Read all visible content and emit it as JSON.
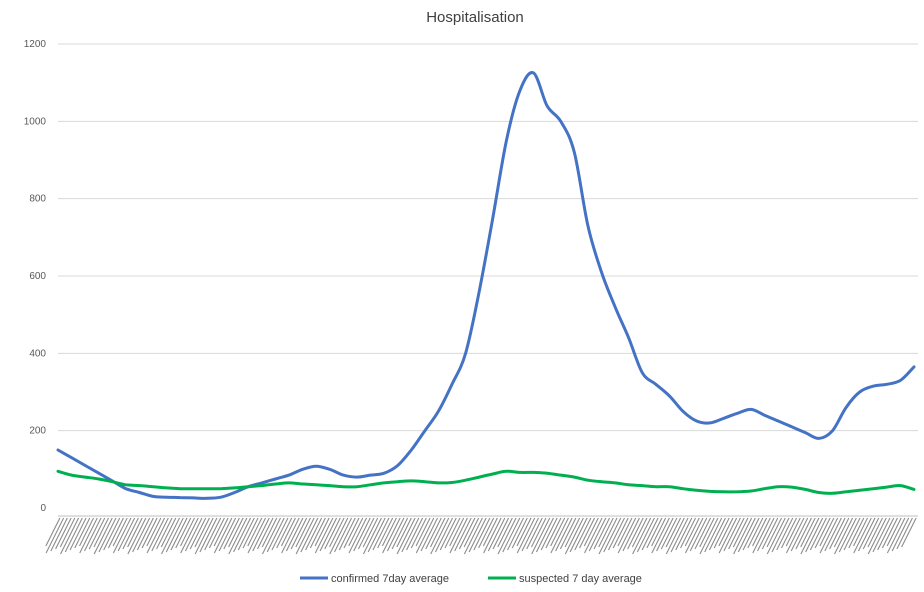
{
  "chart_data": {
    "type": "line",
    "title": "Hospitalisation",
    "xlabel": "",
    "ylabel": "",
    "ylim": [
      0,
      1200
    ],
    "y_ticks": [
      0,
      200,
      400,
      600,
      800,
      1000,
      1200
    ],
    "grid": "horizontal",
    "legend": "bottom",
    "x_tick_labels_note": "dense rotated date labels (illegible)",
    "series": [
      {
        "name": "confirmed 7day average",
        "color": "#4472c4",
        "values": [
          150,
          130,
          110,
          90,
          70,
          50,
          40,
          30,
          28,
          27,
          26,
          25,
          28,
          40,
          55,
          65,
          75,
          85,
          100,
          108,
          100,
          85,
          80,
          85,
          90,
          110,
          150,
          200,
          250,
          320,
          400,
          560,
          750,
          950,
          1080,
          1125,
          1040,
          1000,
          920,
          730,
          610,
          520,
          440,
          350,
          320,
          290,
          250,
          225,
          220,
          232,
          245,
          255,
          240,
          225,
          210,
          195,
          180,
          200,
          260,
          300,
          315,
          320,
          330,
          365
        ]
      },
      {
        "name": "suspected 7 day average",
        "color": "#00b050",
        "values": [
          95,
          85,
          80,
          75,
          68,
          60,
          58,
          55,
          52,
          50,
          50,
          50,
          50,
          52,
          55,
          58,
          62,
          65,
          62,
          60,
          58,
          55,
          55,
          60,
          65,
          68,
          70,
          68,
          65,
          66,
          72,
          80,
          88,
          95,
          92,
          92,
          90,
          85,
          80,
          72,
          68,
          65,
          60,
          58,
          55,
          55,
          50,
          46,
          43,
          42,
          42,
          44,
          50,
          55,
          54,
          48,
          40,
          38,
          42,
          46,
          50,
          54,
          58,
          48
        ]
      }
    ]
  }
}
